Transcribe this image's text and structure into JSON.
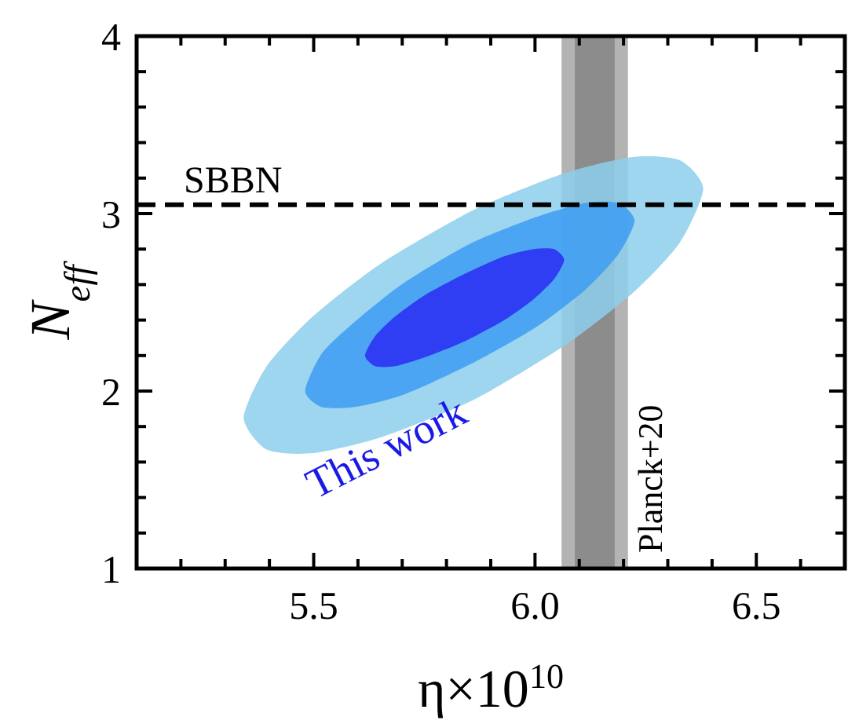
{
  "chart_data": {
    "type": "area",
    "xlabel": "η×10$^{10}$",
    "ylabel": "N$_{eff}$",
    "xlim": [
      5.1,
      6.7
    ],
    "ylim": [
      1,
      4
    ],
    "xticks": [
      {
        "value": 5.2,
        "label": null
      },
      {
        "value": 5.3,
        "label": null
      },
      {
        "value": 5.4,
        "label": null
      },
      {
        "value": 5.5,
        "label": "5.5"
      },
      {
        "value": 5.6,
        "label": null
      },
      {
        "value": 5.7,
        "label": null
      },
      {
        "value": 5.8,
        "label": null
      },
      {
        "value": 5.9,
        "label": null
      },
      {
        "value": 6,
        "label": "6.0"
      },
      {
        "value": 6.1,
        "label": null
      },
      {
        "value": 6.2,
        "label": null
      },
      {
        "value": 6.3,
        "label": null
      },
      {
        "value": 6.4,
        "label": null
      },
      {
        "value": 6.5,
        "label": "6.5"
      },
      {
        "value": 6.6,
        "label": null
      }
    ],
    "yticks": [
      1,
      {
        "value": 1.2,
        "label": null
      },
      {
        "value": 1.4,
        "label": null
      },
      {
        "value": 1.6,
        "label": null
      },
      {
        "value": 1.8,
        "label": null
      },
      2,
      {
        "value": 2.2,
        "label": null
      },
      {
        "value": 2.4,
        "label": null
      },
      {
        "value": 2.6,
        "label": null
      },
      {
        "value": 2.8,
        "label": null
      },
      3,
      {
        "value": 3.2,
        "label": null
      },
      {
        "value": 3.4,
        "label": null
      },
      {
        "value": 3.6,
        "label": null
      },
      {
        "value": 3.8,
        "label": null
      },
      4
    ],
    "series": [
      {
        "type": "area",
        "color": "#8dcfec",
        "x": [
          5.342,
          5.394,
          5.498,
          5.653,
          5.861,
          6.069,
          6.224,
          6.328,
          6.38,
          6.328,
          6.224,
          6.069,
          5.861,
          5.653,
          5.498,
          5.394
        ],
        "values": [
          1.85,
          2.14,
          2.42,
          2.72,
          3.02,
          3.23,
          3.32,
          3.3,
          3.14,
          2.84,
          2.56,
          2.26,
          1.95,
          1.74,
          1.65,
          1.67
        ]
      },
      {
        "type": "area",
        "color": "#3d9cf2",
        "x": [
          5.481,
          5.518,
          5.593,
          5.704,
          5.853,
          6.002,
          6.113,
          6.188,
          6.225,
          6.188,
          6.113,
          6.002,
          5.853,
          5.704,
          5.593,
          5.518
        ],
        "values": [
          2.0,
          2.21,
          2.39,
          2.61,
          2.83,
          2.98,
          3.06,
          3.06,
          2.96,
          2.77,
          2.57,
          2.36,
          2.15,
          1.98,
          1.91,
          1.91
        ]
      },
      {
        "type": "area",
        "color": "#2a2cf2",
        "x": [
          5.616,
          5.639,
          5.684,
          5.751,
          5.841,
          5.931,
          5.998,
          6.043,
          6.066,
          6.043,
          5.998,
          5.931,
          5.841,
          5.751,
          5.684,
          5.639
        ],
        "values": [
          2.2,
          2.31,
          2.42,
          2.54,
          2.66,
          2.76,
          2.8,
          2.8,
          2.74,
          2.63,
          2.52,
          2.4,
          2.28,
          2.19,
          2.14,
          2.14
        ]
      }
    ],
    "bands": [
      {
        "axis": "x",
        "from": 6.06,
        "to": 6.21,
        "color": "#b3b3b3"
      },
      {
        "axis": "x",
        "from": 6.09,
        "to": 6.18,
        "color": "#8c8c8c",
        "label": "Planck+20"
      }
    ],
    "ref_lines": [
      {
        "axis": "y",
        "value": 3.05,
        "label": "SBBN",
        "line_style": "dashed"
      }
    ],
    "annotations": [
      "This work"
    ]
  }
}
